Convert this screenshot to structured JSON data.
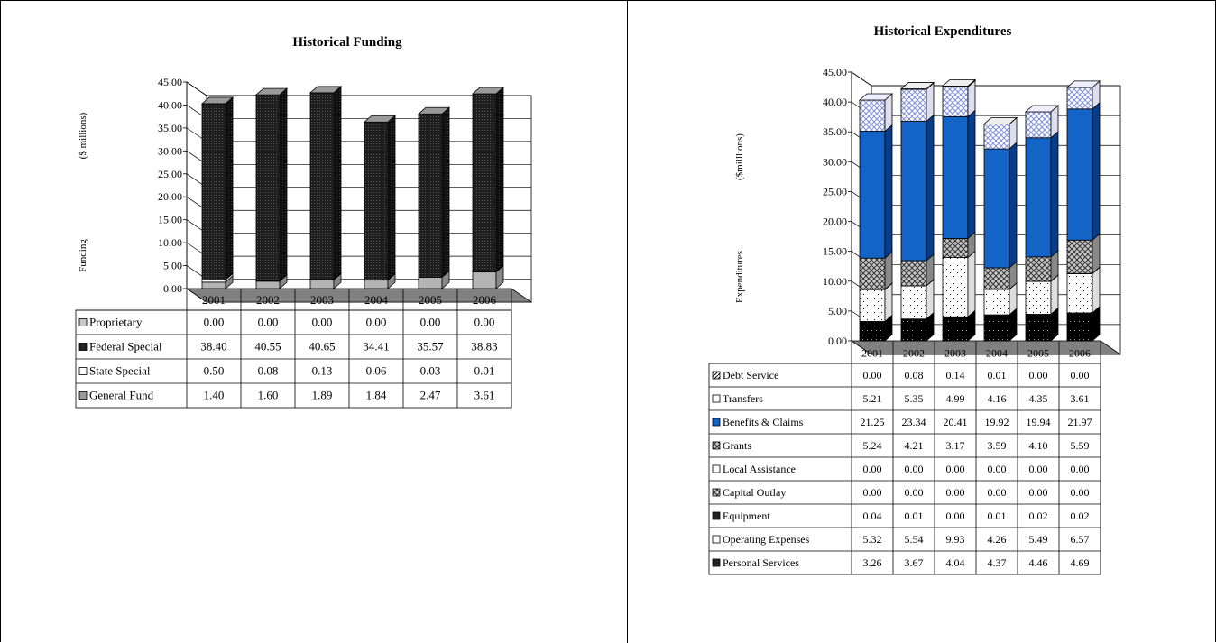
{
  "chart_data": [
    {
      "type": "bar",
      "stacked": true,
      "title": "Historical Funding",
      "ylabel": [
        "Funding",
        "($ millions)"
      ],
      "ylim": [
        0,
        45
      ],
      "yticks": [
        "0.00",
        "5.00",
        "10.00",
        "15.00",
        "20.00",
        "25.00",
        "30.00",
        "35.00",
        "40.00",
        "45.00"
      ],
      "categories": [
        "2001",
        "2002",
        "2003",
        "2004",
        "2005",
        "2006"
      ],
      "series": [
        {
          "name": "Proprietary",
          "values": [
            0.0,
            0.0,
            0.0,
            0.0,
            0.0,
            0.0
          ],
          "labels": [
            "0.00",
            "0.00",
            "0.00",
            "0.00",
            "0.00",
            "0.00"
          ]
        },
        {
          "name": "Federal Special",
          "values": [
            38.4,
            40.55,
            40.65,
            34.41,
            35.57,
            38.83
          ],
          "labels": [
            "38.40",
            "40.55",
            "40.65",
            "34.41",
            "35.57",
            "38.83"
          ]
        },
        {
          "name": "State Special",
          "values": [
            0.5,
            0.08,
            0.13,
            0.06,
            0.03,
            0.01
          ],
          "labels": [
            "0.50",
            "0.08",
            "0.13",
            "0.06",
            "0.03",
            "0.01"
          ]
        },
        {
          "name": "General Fund",
          "values": [
            1.4,
            1.6,
            1.89,
            1.84,
            2.47,
            3.61
          ],
          "labels": [
            "1.40",
            "1.60",
            "1.89",
            "1.84",
            "2.47",
            "3.61"
          ]
        }
      ]
    },
    {
      "type": "bar",
      "stacked": true,
      "title": "Historical Expenditures",
      "ylabel": [
        "Expenditures",
        "($milllions)"
      ],
      "ylim": [
        0,
        45
      ],
      "yticks": [
        "0.00",
        "5.00",
        "10.00",
        "15.00",
        "20.00",
        "25.00",
        "30.00",
        "35.00",
        "40.00",
        "45.00"
      ],
      "categories": [
        "2001",
        "2002",
        "2003",
        "2004",
        "2005",
        "2006"
      ],
      "series": [
        {
          "name": "Debt Service",
          "values": [
            0.0,
            0.08,
            0.14,
            0.01,
            0.0,
            0.0
          ],
          "labels": [
            "0.00",
            "0.08",
            "0.14",
            "0.01",
            "0.00",
            "0.00"
          ]
        },
        {
          "name": "Transfers",
          "values": [
            5.21,
            5.35,
            4.99,
            4.16,
            4.35,
            3.61
          ],
          "labels": [
            "5.21",
            "5.35",
            "4.99",
            "4.16",
            "4.35",
            "3.61"
          ]
        },
        {
          "name": "Benefits & Claims",
          "values": [
            21.25,
            23.34,
            20.41,
            19.92,
            19.94,
            21.97
          ],
          "labels": [
            "21.25",
            "23.34",
            "20.41",
            "19.92",
            "19.94",
            "21.97"
          ]
        },
        {
          "name": "Grants",
          "values": [
            5.24,
            4.21,
            3.17,
            3.59,
            4.1,
            5.59
          ],
          "labels": [
            "5.24",
            "4.21",
            "3.17",
            "3.59",
            "4.10",
            "5.59"
          ]
        },
        {
          "name": "Local Assistance",
          "values": [
            0.0,
            0.0,
            0.0,
            0.0,
            0.0,
            0.0
          ],
          "labels": [
            "0.00",
            "0.00",
            "0.00",
            "0.00",
            "0.00",
            "0.00"
          ]
        },
        {
          "name": "Capital Outlay",
          "values": [
            0.0,
            0.0,
            0.0,
            0.0,
            0.0,
            0.0
          ],
          "labels": [
            "0.00",
            "0.00",
            "0.00",
            "0.00",
            "0.00",
            "0.00"
          ]
        },
        {
          "name": "Equipment",
          "values": [
            0.04,
            0.01,
            0.0,
            0.01,
            0.02,
            0.02
          ],
          "labels": [
            "0.04",
            "0.01",
            "0.00",
            "0.01",
            "0.02",
            "0.02"
          ]
        },
        {
          "name": "Operating Expenses",
          "values": [
            5.32,
            5.54,
            9.93,
            4.26,
            5.49,
            6.57
          ],
          "labels": [
            "5.32",
            "5.54",
            "9.93",
            "4.26",
            "5.49",
            "6.57"
          ]
        },
        {
          "name": "Personal Services",
          "values": [
            3.26,
            3.67,
            4.04,
            4.37,
            4.46,
            4.69
          ],
          "labels": [
            "3.26",
            "3.67",
            "4.04",
            "4.37",
            "4.46",
            "4.69"
          ]
        }
      ]
    }
  ]
}
